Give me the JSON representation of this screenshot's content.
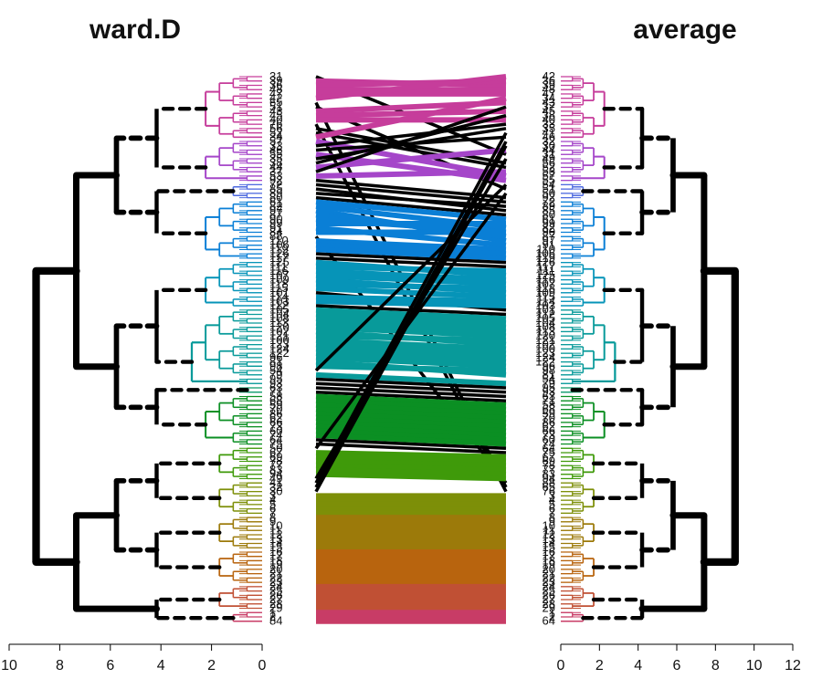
{
  "left_title": "ward.D",
  "right_title": "average",
  "left_axis_ticks": [
    "10",
    "8",
    "6",
    "4",
    "2",
    "0"
  ],
  "right_axis_ticks": [
    "0",
    "2",
    "4",
    "6",
    "8",
    "10",
    "12"
  ],
  "left_leaf_labels": [
    "31",
    "39",
    "36",
    "48",
    "47",
    "42",
    "65",
    "51",
    "43",
    "45",
    "40",
    "76",
    "56",
    "52",
    "34",
    "57",
    "33",
    "46",
    "55",
    "35",
    "38",
    "44",
    "37",
    "53",
    "92",
    "72",
    "85",
    "89",
    "80",
    "61",
    "82",
    "97",
    "87",
    "90",
    "99",
    "91",
    "84",
    "88",
    "110",
    "106",
    "119",
    "126",
    "117",
    "125",
    "111",
    "116",
    "107",
    "109",
    "118",
    "115",
    "101",
    "114",
    "103",
    "112",
    "105",
    "104",
    "108",
    "113",
    "120",
    "102",
    "121",
    "100",
    "123",
    "124",
    "122",
    "96",
    "81",
    "98",
    "54",
    "79",
    "95",
    "93",
    "63",
    "71",
    "58",
    "68",
    "59",
    "70",
    "86",
    "62",
    "66",
    "73",
    "60",
    "74",
    "64",
    "75",
    "50",
    "67",
    "69",
    "78",
    "77",
    "83",
    "94",
    "49",
    "41",
    "32",
    "30",
    "3",
    "4",
    "5",
    "6",
    "7",
    "8",
    "9",
    "10",
    "11",
    "12",
    "13",
    "14",
    "15",
    "16",
    "17",
    "18",
    "19",
    "20",
    "21",
    "22",
    "23",
    "24",
    "25",
    "26",
    "27",
    "28",
    "29",
    "1",
    "2",
    "84"
  ],
  "right_leaf_labels": [
    "42",
    "36",
    "39",
    "48",
    "47",
    "34",
    "43",
    "37",
    "45",
    "38",
    "40",
    "33",
    "35",
    "41",
    "46",
    "32",
    "30",
    "44",
    "31",
    "49",
    "56",
    "52",
    "53",
    "57",
    "55",
    "54",
    "51",
    "50",
    "92",
    "72",
    "89",
    "85",
    "80",
    "61",
    "99",
    "82",
    "90",
    "87",
    "97",
    "91",
    "110",
    "106",
    "119",
    "126",
    "117",
    "111",
    "125",
    "116",
    "107",
    "118",
    "109",
    "115",
    "114",
    "103",
    "101",
    "112",
    "105",
    "104",
    "108",
    "113",
    "120",
    "121",
    "102",
    "100",
    "123",
    "124",
    "122",
    "96",
    "98",
    "81",
    "54",
    "79",
    "95",
    "93",
    "63",
    "71",
    "58",
    "68",
    "59",
    "70",
    "86",
    "62",
    "66",
    "73",
    "60",
    "74",
    "64",
    "75",
    "67",
    "69",
    "78",
    "77",
    "83",
    "94",
    "88",
    "65",
    "76",
    "3",
    "4",
    "5",
    "6",
    "7",
    "8",
    "9",
    "10",
    "11",
    "12",
    "13",
    "14",
    "15",
    "16",
    "17",
    "18",
    "19",
    "20",
    "21",
    "22",
    "23",
    "24",
    "25",
    "26",
    "27",
    "28",
    "29",
    "1",
    "2",
    "64"
  ],
  "clusters": [
    {
      "name": "magenta",
      "color": "#c63d9b",
      "count": 15
    },
    {
      "name": "violet",
      "color": "#a546c9",
      "count": 10
    },
    {
      "name": "royal-blue",
      "color": "#4f6be0",
      "count": 4
    },
    {
      "name": "azure",
      "color": "#0a7fd6",
      "count": 14
    },
    {
      "name": "steel-teal",
      "color": "#0694b8",
      "count": 11
    },
    {
      "name": "teal",
      "color": "#089a9a",
      "count": 18
    },
    {
      "name": "green-cyan",
      "color": "#0a9a6a",
      "count": 2
    },
    {
      "name": "green",
      "color": "#0b8f23",
      "count": 12
    },
    {
      "name": "lime-green",
      "color": "#3f9a0a",
      "count": 8
    },
    {
      "name": "olive",
      "color": "#7d8f08",
      "count": 8
    },
    {
      "name": "ochre",
      "color": "#9c7a0a",
      "count": 8
    },
    {
      "name": "orange",
      "color": "#b8640e",
      "count": 8
    },
    {
      "name": "rust",
      "color": "#c05034",
      "count": 6
    },
    {
      "name": "rose",
      "color": "#c83c66",
      "count": 3
    }
  ]
}
